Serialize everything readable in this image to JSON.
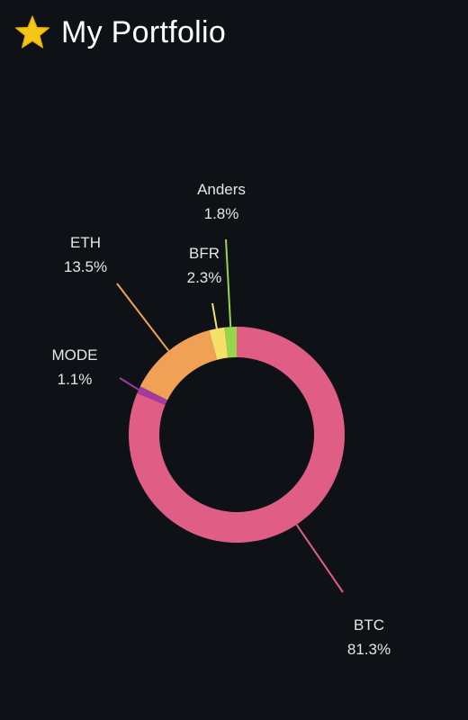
{
  "header": {
    "title": "My Portfolio",
    "icon": "star-icon",
    "icon_color": "#f5c518"
  },
  "colors": {
    "background": "#0e1216",
    "text": "#e6e6e6"
  },
  "chart_data": {
    "type": "pie",
    "title": "",
    "donut": true,
    "legend": "none",
    "slices": [
      {
        "label": "BTC",
        "value": 81.3,
        "display": "81.3%",
        "color": "#e05d86"
      },
      {
        "label": "MODE",
        "value": 1.1,
        "display": "1.1%",
        "color": "#a23aa0"
      },
      {
        "label": "ETH",
        "value": 13.5,
        "display": "13.5%",
        "color": "#f0a155"
      },
      {
        "label": "BFR",
        "value": 2.3,
        "display": "2.3%",
        "color": "#f6e06a"
      },
      {
        "label": "Anders",
        "value": 1.8,
        "display": "1.8%",
        "color": "#95d64a"
      }
    ]
  }
}
